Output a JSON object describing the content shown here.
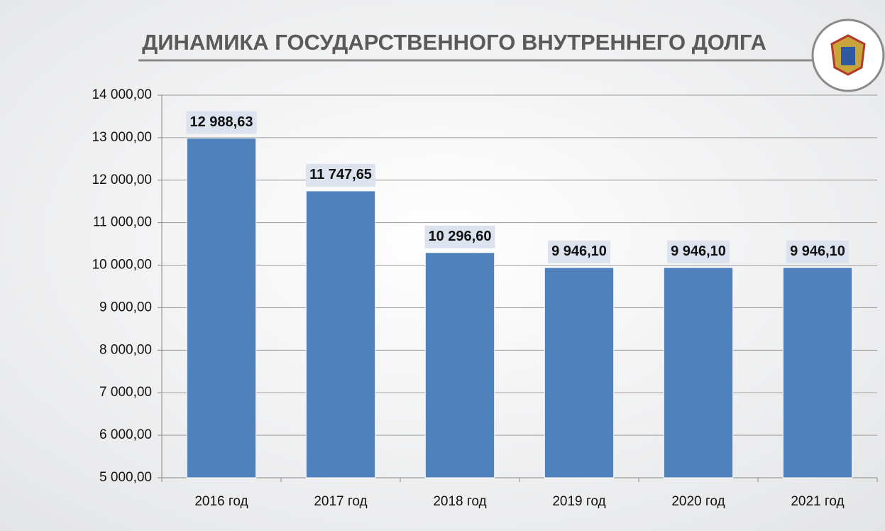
{
  "chart_data": {
    "type": "bar",
    "title": "ДИНАМИКА ГОСУДАРСТВЕННОГО ВНУТРЕННЕГО ДОЛГА",
    "categories": [
      "2016 год",
      "2017 год",
      "2018 год",
      "2019 год",
      "2020 год",
      "2021 год"
    ],
    "values": [
      12988.63,
      11747.65,
      10296.6,
      9946.1,
      9946.1,
      9946.1
    ],
    "value_labels": [
      "12 988,63",
      "11 747,65",
      "10 296,60",
      "9 946,10",
      "9 946,10",
      "9 946,10"
    ],
    "color": "#4f81bd",
    "ylim": [
      5000,
      14000
    ],
    "yticks": [
      {
        "value": 5000,
        "label": "5 000,00"
      },
      {
        "value": 6000,
        "label": "6 000,00"
      },
      {
        "value": 7000,
        "label": "7 000,00"
      },
      {
        "value": 8000,
        "label": "8 000,00"
      },
      {
        "value": 9000,
        "label": "9 000,00"
      },
      {
        "value": 10000,
        "label": "10 000,00"
      },
      {
        "value": 11000,
        "label": "11 000,00"
      },
      {
        "value": 12000,
        "label": "12 000,00"
      },
      {
        "value": 13000,
        "label": "13 000,00"
      },
      {
        "value": 14000,
        "label": "14 000,00"
      }
    ],
    "grid": true
  }
}
